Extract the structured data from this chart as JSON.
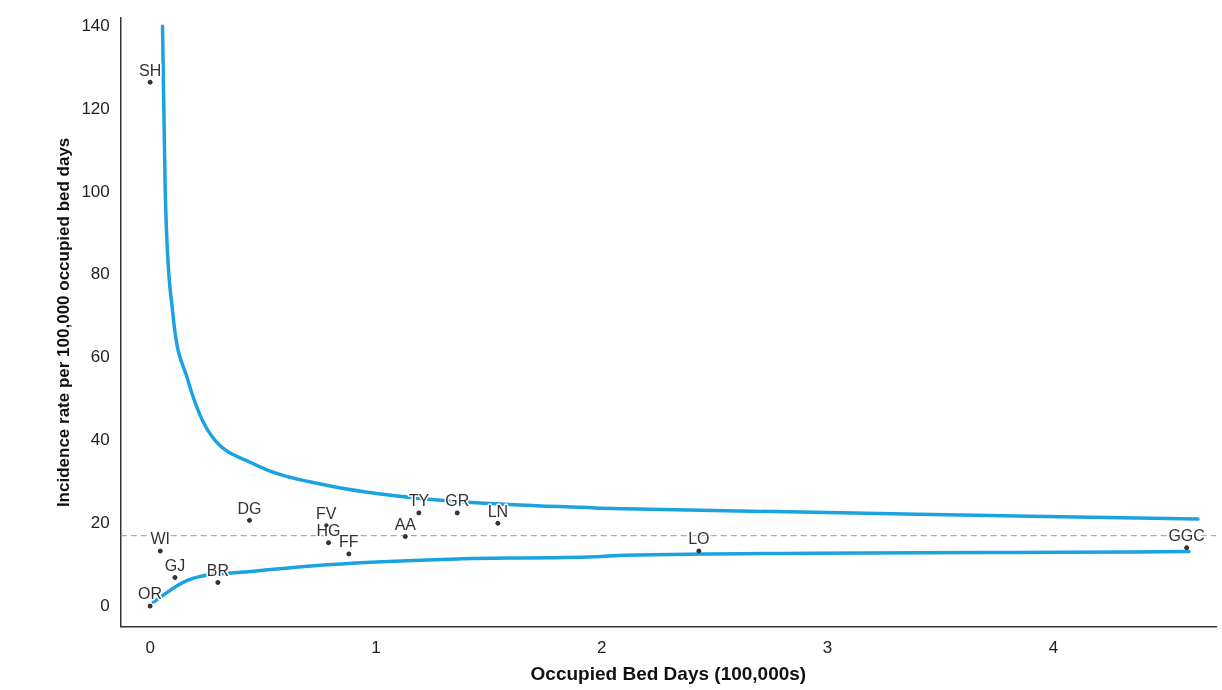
{
  "chart_data": {
    "type": "scatter",
    "xlabel": "Occupied Bed Days (100,000s)",
    "ylabel": "Incidence rate per 100,000 occupied bed days",
    "xlim": [
      -0.13,
      4.72
    ],
    "ylim": [
      -5,
      142
    ],
    "xticks": [
      0,
      1,
      2,
      3,
      4
    ],
    "yticks": [
      0,
      20,
      40,
      60,
      80,
      100,
      120,
      140
    ],
    "grid": false,
    "legend": false,
    "ref_lines": [
      {
        "axis": "y",
        "value": 17,
        "color": "#999999",
        "line_style": "dashed"
      }
    ],
    "series": [
      {
        "color": "#333333",
        "marker": "circle",
        "x": [
          0,
          0.045,
          0.11,
          0.3,
          0,
          0.44,
          0.78,
          0.79,
          0.88,
          1.13,
          1.19,
          1.36,
          1.54,
          2.43,
          4.59
        ],
        "values": [
          126.5,
          13.3,
          6.9,
          5.7,
          0,
          20.7,
          19.5,
          15.3,
          12.6,
          16.8,
          22.5,
          22.5,
          20,
          13.3,
          14.1
        ],
        "value_labels": [
          "SH",
          "WI",
          "GJ",
          "BR",
          "OR",
          "DG",
          "FV",
          "HG",
          "FF",
          "AA",
          "TY",
          "GR",
          "LN",
          "LO",
          "GGC"
        ]
      },
      {
        "type": "line",
        "color": "#1aa3e0",
        "line_style": "solid",
        "marker": "none",
        "x": [
          0.055,
          0.067,
          0.1,
          0.166,
          0.255,
          0.46,
          0.76,
          1.21,
          1.97,
          2.1,
          3.4,
          4.64
        ],
        "values": [
          140,
          100,
          71,
          54.8,
          42.5,
          34.3,
          29.4,
          25.9,
          23.7,
          23.5,
          22.2,
          21
        ]
      },
      {
        "type": "line",
        "color": "#1aa3e0",
        "line_style": "solid",
        "marker": "none",
        "x": [
          0.015,
          0.165,
          0.46,
          0.91,
          1.36,
          1.97,
          2.1,
          4.48,
          4.6
        ],
        "values": [
          1,
          6.2,
          8.4,
          10.4,
          11.4,
          11.9,
          12.3,
          13.1,
          13.2
        ]
      }
    ]
  }
}
